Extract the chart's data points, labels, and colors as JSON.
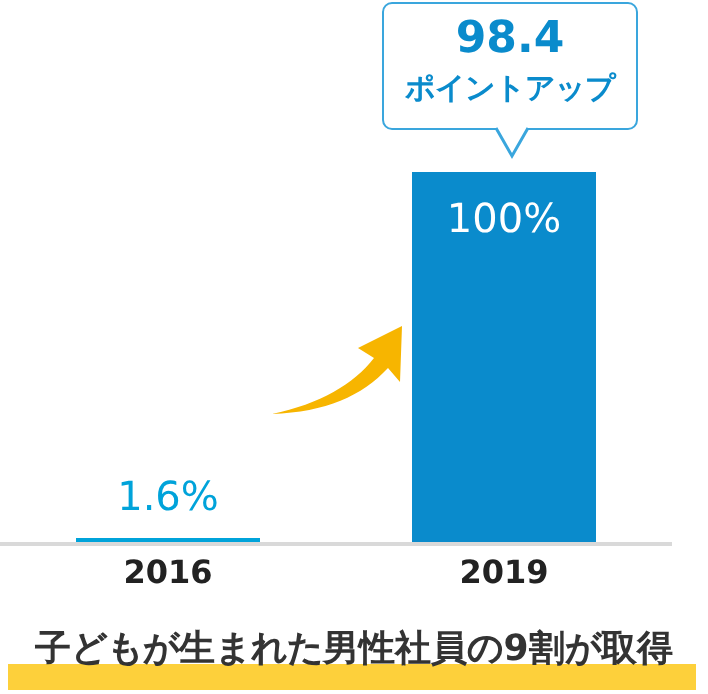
{
  "chart_data": {
    "type": "bar",
    "title": "子どもが生まれた男性社員の9割が取得",
    "categories": [
      "2016",
      "2019"
    ],
    "values": [
      1.6,
      100
    ],
    "colors": [
      "#00a3da",
      "#0a8bcc"
    ],
    "value_labels": [
      "1.6%",
      "100%"
    ],
    "annotations": [
      "98.4\nポイントアップ"
    ],
    "grid": false,
    "legend": false
  }
}
